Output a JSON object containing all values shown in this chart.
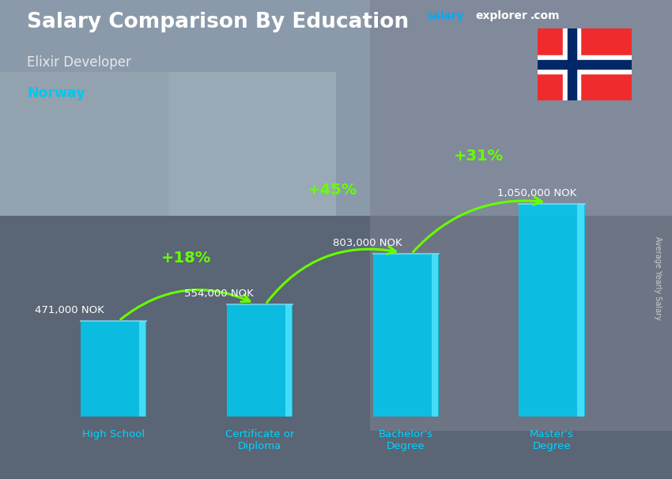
{
  "title": "Salary Comparison By Education",
  "subtitle": "Elixir Developer",
  "country": "Norway",
  "categories": [
    "High School",
    "Certificate or\nDiploma",
    "Bachelor's\nDegree",
    "Master's\nDegree"
  ],
  "values": [
    471000,
    554000,
    803000,
    1050000
  ],
  "value_labels": [
    "471,000 NOK",
    "554,000 NOK",
    "803,000 NOK",
    "1,050,000 NOK"
  ],
  "pct_labels": [
    "+18%",
    "+45%",
    "+31%"
  ],
  "bar_color": "#00c8f0",
  "bar_highlight": "#55e8ff",
  "bar_shadow": "#007aaa",
  "bg_color": "#6b7a8d",
  "title_color": "#ffffff",
  "subtitle_color": "#e0e0e0",
  "country_color": "#00c8f0",
  "value_label_color": "#ffffff",
  "pct_color": "#66ff00",
  "xlabel_color": "#00d4ff",
  "ylabel_text": "Average Yearly Salary",
  "ylabel_color": "#cccccc",
  "site_salary_color": "#00aaff",
  "site_explorer_color": "#ffffff",
  "site_com_color": "#ffffff",
  "ylim": [
    0,
    1300000
  ],
  "bar_width": 0.45,
  "flag_red": "#EF2B2D",
  "flag_blue": "#002868",
  "flag_white": "#ffffff"
}
